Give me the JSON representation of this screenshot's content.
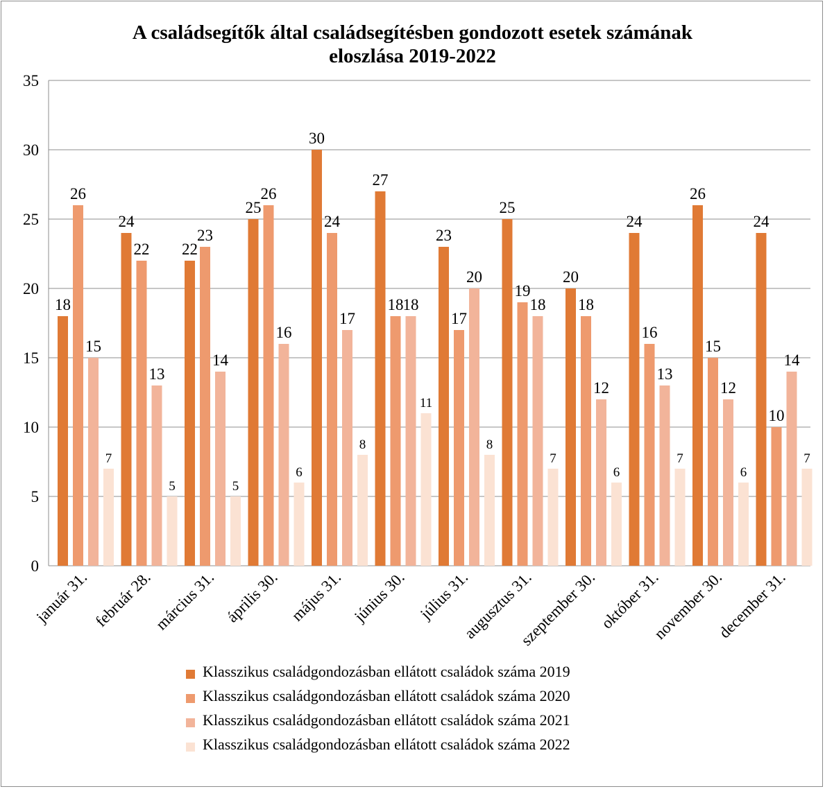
{
  "chart_data": {
    "type": "bar",
    "title": "A családsegítők által családsegítésben gondozott  esetek  számának eloszlása 2019-2022",
    "title_lines": [
      "A családsegítők által családsegítésben gondozott  esetek  számának",
      "eloszlása 2019-2022"
    ],
    "categories": [
      "január 31.",
      "február 28.",
      "március 31.",
      "április 30.",
      "május 31.",
      "június 30.",
      "július 31.",
      "augusztus 31.",
      "szeptember 30.",
      "október 31.",
      "november 30.",
      "december 31."
    ],
    "series": [
      {
        "name": "Klasszikus családgondozásban ellátott  családok száma 2019",
        "color": "#E07A35",
        "values": [
          18,
          24,
          22,
          25,
          30,
          27,
          23,
          25,
          20,
          24,
          26,
          24
        ]
      },
      {
        "name": "Klasszikus családgondozásban ellátott családok száma 2020",
        "color": "#EE9A6E",
        "values": [
          26,
          22,
          23,
          26,
          24,
          18,
          17,
          19,
          18,
          16,
          15,
          10
        ]
      },
      {
        "name": "Klasszikus családgondozásban ellátott családok száma 2021",
        "color": "#F2B49A",
        "values": [
          15,
          13,
          14,
          16,
          17,
          18,
          20,
          18,
          12,
          13,
          12,
          14
        ]
      },
      {
        "name": "Klasszikus családgondozásban ellátott családok száma 2022",
        "color": "#FBE2D3",
        "values": [
          7,
          5,
          5,
          6,
          8,
          11,
          8,
          7,
          6,
          7,
          6,
          7
        ]
      }
    ],
    "xlabel": "",
    "ylabel": "",
    "ylim": [
      0,
      35
    ],
    "yticks": [
      0,
      5,
      10,
      15,
      20,
      25,
      30,
      35
    ],
    "grid": true,
    "legend_position": "bottom",
    "data_labels": true
  }
}
